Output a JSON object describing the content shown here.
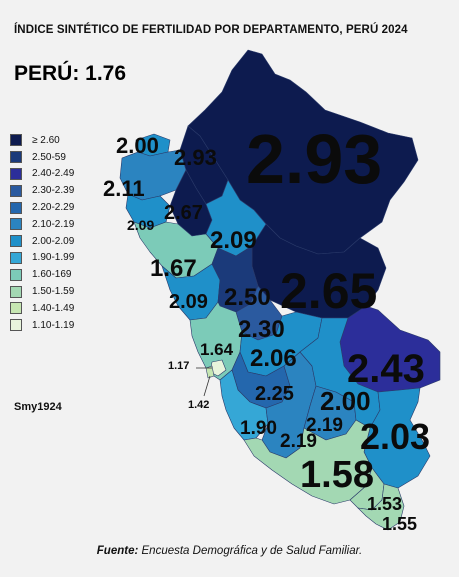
{
  "title": "ÍNDICE SINTÉTICO DE FERTILIDAD POR DEPARTAMENTO, PERÚ 2024",
  "national": "PERÚ: 1.76",
  "credit": "Smy1924",
  "source": {
    "prefix": "Fuente:",
    "text": "Encuesta Demográfica y de Salud Familiar."
  },
  "legend": [
    {
      "label": "≥ 2.60",
      "color": "#0d1b4f"
    },
    {
      "label": "2.50-59",
      "color": "#1b3a7a"
    },
    {
      "label": "2.40-2.49",
      "color": "#2c2e9a"
    },
    {
      "label": "2.30-2.39",
      "color": "#2b5a9f"
    },
    {
      "label": "2.20-2.29",
      "color": "#2467ad"
    },
    {
      "label": "2.10-2.19",
      "color": "#2b84c0"
    },
    {
      "label": "2.00-2.09",
      "color": "#1f90c9"
    },
    {
      "label": "1.90-1.99",
      "color": "#35a7d6"
    },
    {
      "label": "1.60-169",
      "color": "#7ccbb8"
    },
    {
      "label": "1.50-1.59",
      "color": "#a3d8b3"
    },
    {
      "label": "1.40-1.49",
      "color": "#c6e6b2"
    },
    {
      "label": "1.10-1.19",
      "color": "#e8f4dc"
    }
  ],
  "regions": [
    {
      "name": "tumbes",
      "value": "2.00",
      "color": "#1f90c9"
    },
    {
      "name": "piura",
      "value": "2.11",
      "color": "#2b84c0"
    },
    {
      "name": "amazonas",
      "value": "2.93",
      "color": "#0d1b4f"
    },
    {
      "name": "loreto",
      "value": "2.93",
      "color": "#0d1b4f"
    },
    {
      "name": "lambayeque",
      "value": "2.09",
      "color": "#1f90c9"
    },
    {
      "name": "cajamarca",
      "value": "2.67",
      "color": "#0d1b4f"
    },
    {
      "name": "san-martin",
      "value": "2.09",
      "color": "#1f90c9"
    },
    {
      "name": "la-libertad",
      "value": "1.67",
      "color": "#7ccbb8"
    },
    {
      "name": "ucayali",
      "value": "2.65",
      "color": "#0d1b4f"
    },
    {
      "name": "ancash",
      "value": "2.09",
      "color": "#1f90c9"
    },
    {
      "name": "huanuco",
      "value": "2.50",
      "color": "#1b3a7a"
    },
    {
      "name": "pasco",
      "value": "2.30",
      "color": "#2b5a9f"
    },
    {
      "name": "lima-provincias",
      "value": "1.64",
      "color": "#7ccbb8"
    },
    {
      "name": "junin",
      "value": "2.06",
      "color": "#1f90c9"
    },
    {
      "name": "madre-de-dios",
      "value": "2.43",
      "color": "#2c2e9a"
    },
    {
      "name": "lima-metropolitana",
      "value": "1.17",
      "color": "#e8f4dc"
    },
    {
      "name": "callao",
      "value": "1.42",
      "color": "#c6e6b2"
    },
    {
      "name": "huancavelica",
      "value": "2.25",
      "color": "#2467ad"
    },
    {
      "name": "cusco",
      "value": "2.00",
      "color": "#1f90c9"
    },
    {
      "name": "ica",
      "value": "1.90",
      "color": "#35a7d6"
    },
    {
      "name": "apurimac",
      "value": "2.19",
      "color": "#2b84c0"
    },
    {
      "name": "ayacucho",
      "value": "2.19",
      "color": "#2b84c0"
    },
    {
      "name": "puno",
      "value": "2.03",
      "color": "#1f90c9"
    },
    {
      "name": "arequipa",
      "value": "1.58",
      "color": "#a3d8b3"
    },
    {
      "name": "moquegua",
      "value": "1.53",
      "color": "#a3d8b3"
    },
    {
      "name": "tacna",
      "value": "1.55",
      "color": "#a3d8b3"
    }
  ]
}
